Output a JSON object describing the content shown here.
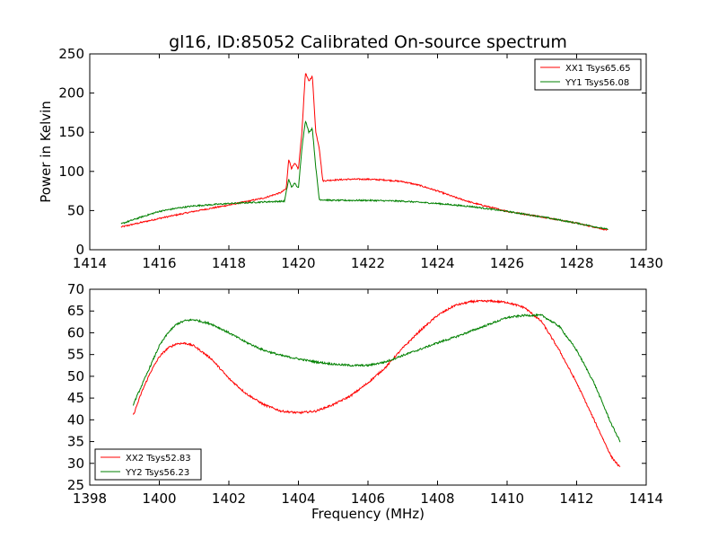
{
  "figure": {
    "title": "gl16, ID:85052 Calibrated On-source spectrum"
  },
  "chart_data": [
    {
      "type": "line",
      "xlabel": "",
      "ylabel": "Power in Kelvin",
      "xlim": [
        1414,
        1430
      ],
      "ylim": [
        0,
        250
      ],
      "xticks": [
        1414,
        1416,
        1418,
        1420,
        1422,
        1424,
        1426,
        1428,
        1430
      ],
      "yticks": [
        0,
        50,
        100,
        150,
        200,
        250
      ],
      "legend_position": "top-right",
      "grid": false,
      "series": [
        {
          "name": "XX1 Tsys65.65",
          "color": "#ff0000",
          "x": [
            1414.9,
            1416,
            1417,
            1418,
            1419,
            1419.5,
            1419.65,
            1419.72,
            1419.8,
            1419.9,
            1420.0,
            1420.1,
            1420.2,
            1420.3,
            1420.4,
            1420.5,
            1420.6,
            1420.7,
            1421,
            1421.5,
            1422,
            1422.5,
            1423,
            1423.5,
            1424,
            1424.5,
            1425,
            1426,
            1427,
            1428,
            1428.9
          ],
          "y": [
            29,
            40,
            49,
            57,
            66,
            73,
            78,
            116,
            104,
            110,
            103,
            150,
            226,
            215,
            222,
            150,
            130,
            88,
            89,
            90,
            90,
            89,
            87,
            82,
            75,
            67,
            60,
            49,
            42,
            34,
            25
          ]
        },
        {
          "name": "YY1 Tsys56.08",
          "color": "#008000",
          "x": [
            1414.9,
            1415.5,
            1416,
            1416.5,
            1417,
            1418,
            1419,
            1419.6,
            1419.72,
            1419.8,
            1419.9,
            1420.0,
            1420.1,
            1420.2,
            1420.3,
            1420.4,
            1420.5,
            1420.6,
            1421,
            1422,
            1423,
            1424,
            1425,
            1426,
            1427,
            1428,
            1428.9
          ],
          "y": [
            33,
            42,
            49,
            53,
            56,
            59,
            61,
            62,
            90,
            80,
            85,
            78,
            130,
            165,
            150,
            155,
            105,
            64,
            63,
            63,
            62,
            59,
            55,
            49,
            42,
            34,
            26
          ]
        }
      ]
    },
    {
      "type": "line",
      "xlabel": "Frequency (MHz)",
      "ylabel": "",
      "xlim": [
        1398,
        1414
      ],
      "ylim": [
        25,
        70
      ],
      "xticks": [
        1398,
        1400,
        1402,
        1404,
        1406,
        1408,
        1410,
        1412,
        1414
      ],
      "yticks": [
        25,
        30,
        35,
        40,
        45,
        50,
        55,
        60,
        65,
        70
      ],
      "legend_position": "bottom-left",
      "grid": false,
      "series": [
        {
          "name": "XX2 Tsys52.83",
          "color": "#ff0000",
          "x": [
            1399.25,
            1399.5,
            1399.75,
            1400,
            1400.25,
            1400.5,
            1400.75,
            1401,
            1401.5,
            1402,
            1402.5,
            1403,
            1403.5,
            1404,
            1404.5,
            1405,
            1405.5,
            1406,
            1406.5,
            1407,
            1407.5,
            1408,
            1408.5,
            1409,
            1409.5,
            1410,
            1410.5,
            1411,
            1411.5,
            1412,
            1412.5,
            1413,
            1413.25
          ],
          "y": [
            41,
            46.5,
            51,
            54.5,
            56.5,
            57.5,
            57.6,
            57,
            54,
            49.5,
            46,
            43.5,
            42,
            41.6,
            42,
            43.5,
            45.5,
            48.5,
            52,
            56.5,
            60.5,
            64,
            66.3,
            67.2,
            67.3,
            67,
            65.8,
            62.5,
            56,
            48.5,
            40,
            31.5,
            29
          ]
        },
        {
          "name": "YY2 Tsys56.23",
          "color": "#008000",
          "x": [
            1399.25,
            1399.5,
            1399.75,
            1400,
            1400.25,
            1400.5,
            1400.75,
            1401,
            1401.5,
            1402,
            1402.5,
            1403,
            1403.5,
            1404,
            1404.5,
            1405,
            1405.5,
            1406,
            1406.5,
            1407,
            1407.5,
            1408,
            1408.5,
            1409,
            1409.5,
            1410,
            1410.5,
            1411,
            1411.5,
            1412,
            1412.5,
            1413,
            1413.25
          ],
          "y": [
            43.5,
            48,
            52.5,
            57,
            60,
            62,
            62.8,
            63,
            62,
            60,
            57.8,
            56,
            54.8,
            54,
            53.3,
            52.8,
            52.5,
            52.5,
            53.3,
            54.8,
            56.2,
            57.7,
            59,
            60.5,
            62,
            63.5,
            64,
            64,
            61.5,
            56,
            48.5,
            39,
            35
          ]
        }
      ]
    }
  ]
}
